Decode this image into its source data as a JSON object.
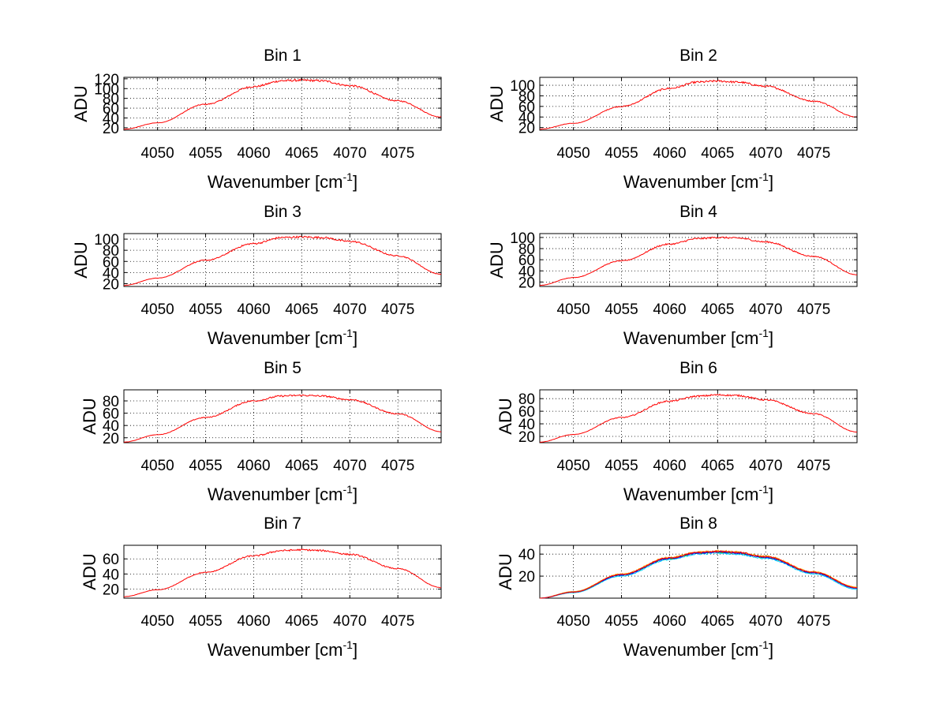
{
  "chart_data": [
    {
      "type": "line",
      "title": "Bin 1",
      "xlabel": "Wavenumber [cm",
      "xlabel_sup": "-1",
      "xlabel_end": "]",
      "ylabel": "ADU",
      "xlim": [
        4046.5,
        4079.5
      ],
      "ylim": [
        15,
        123
      ],
      "xticks": [
        4050,
        4055,
        4060,
        4065,
        4070,
        4075
      ],
      "yticks": [
        20,
        40,
        60,
        80,
        100,
        120
      ],
      "ytick_labels": [
        "20",
        "40",
        "60",
        "80",
        "100",
        "120"
      ],
      "grid": true,
      "x": [
        4046.5,
        4050,
        4055,
        4060,
        4063,
        4065,
        4067,
        4070,
        4075,
        4079.5
      ],
      "series": [
        {
          "values": [
            17,
            30,
            68,
            104,
            116,
            117,
            116,
            106,
            75,
            42
          ],
          "color": "#ff0000",
          "noise": 2.2
        }
      ]
    },
    {
      "type": "line",
      "title": "Bin 2",
      "xlabel": "Wavenumber [cm",
      "xlabel_sup": "-1",
      "xlabel_end": "]",
      "ylabel": "ADU",
      "xlim": [
        4046.5,
        4079.5
      ],
      "ylim": [
        15,
        115
      ],
      "xticks": [
        4050,
        4055,
        4060,
        4065,
        4070,
        4075
      ],
      "yticks": [
        20,
        40,
        60,
        80,
        100
      ],
      "ytick_labels": [
        "20",
        "40",
        "60",
        "80",
        "100"
      ],
      "grid": true,
      "x": [
        4046.5,
        4050,
        4055,
        4060,
        4063,
        4065,
        4067,
        4070,
        4075,
        4079.5
      ],
      "series": [
        {
          "values": [
            17,
            28,
            60,
            94,
            106,
            108,
            106,
            98,
            70,
            40
          ],
          "color": "#ff0000",
          "noise": 2.0
        }
      ]
    },
    {
      "type": "line",
      "title": "Bin 3",
      "xlabel": "Wavenumber [cm",
      "xlabel_sup": "-1",
      "xlabel_end": "]",
      "ylabel": "ADU",
      "xlim": [
        4046.5,
        4079.5
      ],
      "ylim": [
        15,
        110
      ],
      "xticks": [
        4050,
        4055,
        4060,
        4065,
        4070,
        4075
      ],
      "yticks": [
        20,
        40,
        60,
        80,
        100
      ],
      "ytick_labels": [
        "20",
        "40",
        "60",
        "80",
        "100"
      ],
      "grid": true,
      "x": [
        4046.5,
        4050,
        4055,
        4060,
        4063,
        4065,
        4067,
        4070,
        4075,
        4079.5
      ],
      "series": [
        {
          "values": [
            17,
            30,
            62,
            92,
            103,
            104,
            103,
            96,
            70,
            37
          ],
          "color": "#ff0000",
          "noise": 1.8
        }
      ]
    },
    {
      "type": "line",
      "title": "Bin 4",
      "xlabel": "Wavenumber [cm",
      "xlabel_sup": "-1",
      "xlabel_end": "]",
      "ylabel": "ADU",
      "xlim": [
        4046.5,
        4079.5
      ],
      "ylim": [
        12,
        107
      ],
      "xticks": [
        4050,
        4055,
        4060,
        4065,
        4070,
        4075
      ],
      "yticks": [
        20,
        40,
        60,
        80,
        100
      ],
      "ytick_labels": [
        "20",
        "40",
        "60",
        "80",
        "100"
      ],
      "grid": true,
      "x": [
        4046.5,
        4050,
        4055,
        4060,
        4063,
        4065,
        4067,
        4070,
        4075,
        4079.5
      ],
      "series": [
        {
          "values": [
            14,
            28,
            58,
            88,
            98,
            100,
            99,
            92,
            66,
            33
          ],
          "color": "#ff0000",
          "noise": 1.6
        }
      ]
    },
    {
      "type": "line",
      "title": "Bin 5",
      "xlabel": "Wavenumber [cm",
      "xlabel_sup": "-1",
      "xlabel_end": "]",
      "ylabel": "ADU",
      "xlim": [
        4046.5,
        4079.5
      ],
      "ylim": [
        12,
        98
      ],
      "xticks": [
        4050,
        4055,
        4060,
        4065,
        4070,
        4075
      ],
      "yticks": [
        20,
        40,
        60,
        80
      ],
      "ytick_labels": [
        "20",
        "40",
        "60",
        "80"
      ],
      "grid": true,
      "x": [
        4046.5,
        4050,
        4055,
        4060,
        4063,
        4065,
        4067,
        4070,
        4075,
        4079.5
      ],
      "series": [
        {
          "values": [
            13,
            25,
            53,
            80,
            88,
            89,
            88,
            82,
            59,
            30
          ],
          "color": "#ff0000",
          "noise": 1.5
        }
      ]
    },
    {
      "type": "line",
      "title": "Bin 6",
      "xlabel": "Wavenumber [cm",
      "xlabel_sup": "-1",
      "xlabel_end": "]",
      "ylabel": "ADU",
      "xlim": [
        4046.5,
        4079.5
      ],
      "ylim": [
        10,
        94
      ],
      "xticks": [
        4050,
        4055,
        4060,
        4065,
        4070,
        4075
      ],
      "yticks": [
        20,
        40,
        60,
        80
      ],
      "ytick_labels": [
        "20",
        "40",
        "60",
        "80"
      ],
      "grid": true,
      "x": [
        4046.5,
        4050,
        4055,
        4060,
        4063,
        4065,
        4067,
        4070,
        4075,
        4079.5
      ],
      "series": [
        {
          "values": [
            11,
            23,
            50,
            76,
            84,
            86,
            85,
            78,
            56,
            27
          ],
          "color": "#ff0000",
          "noise": 1.5
        }
      ]
    },
    {
      "type": "line",
      "title": "Bin 7",
      "xlabel": "Wavenumber [cm",
      "xlabel_sup": "-1",
      "xlabel_end": "]",
      "ylabel": "ADU",
      "xlim": [
        4046.5,
        4079.5
      ],
      "ylim": [
        8,
        78
      ],
      "xticks": [
        4050,
        4055,
        4060,
        4065,
        4070,
        4075
      ],
      "yticks": [
        20,
        40,
        60
      ],
      "ytick_labels": [
        "20",
        "40",
        "60"
      ],
      "grid": true,
      "x": [
        4046.5,
        4050,
        4055,
        4060,
        4063,
        4065,
        4067,
        4070,
        4075,
        4079.5
      ],
      "series": [
        {
          "values": [
            10,
            19,
            42,
            64,
            71,
            72,
            71,
            66,
            47,
            22
          ],
          "color": "#ff0000",
          "noise": 1.2
        }
      ]
    },
    {
      "type": "line",
      "title": "Bin 8",
      "xlabel": "Wavenumber [cm",
      "xlabel_sup": "-1",
      "xlabel_end": "]",
      "ylabel": "ADU",
      "xlim": [
        4046.5,
        4079.5
      ],
      "ylim": [
        0,
        48
      ],
      "xticks": [
        4050,
        4055,
        4060,
        4065,
        4070,
        4075
      ],
      "yticks": [
        20,
        40
      ],
      "ytick_labels": [
        "20",
        "40"
      ],
      "grid": true,
      "x": [
        4046.5,
        4050,
        4055,
        4060,
        4063,
        4065,
        4067,
        4070,
        4075,
        4079.5
      ],
      "series": [
        {
          "values": [
            0,
            5,
            20,
            35,
            40,
            41,
            40,
            36,
            22,
            8
          ],
          "color": "#00ccff",
          "noise": 0.8
        },
        {
          "values": [
            0,
            5.5,
            21,
            36,
            41,
            42,
            41,
            37,
            23,
            9
          ],
          "color": "#00aa00",
          "noise": 0.8
        },
        {
          "values": [
            0,
            6,
            22,
            37,
            42,
            43,
            42,
            38,
            24,
            10
          ],
          "color": "#ff9900",
          "noise": 0.8
        },
        {
          "values": [
            0,
            5.5,
            21,
            36,
            41,
            42,
            41,
            37,
            23,
            9
          ],
          "color": "#0000ff",
          "noise": 0.8
        },
        {
          "values": [
            0,
            5.5,
            21.5,
            36.5,
            41.5,
            42.5,
            41.5,
            37.5,
            23.5,
            9.5
          ],
          "color": "#ff0000",
          "noise": 0.8
        }
      ]
    }
  ]
}
